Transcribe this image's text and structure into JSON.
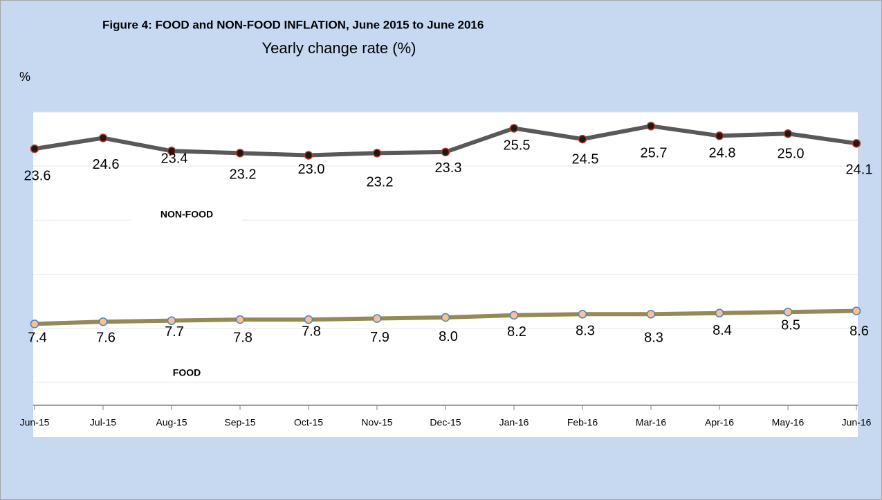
{
  "chart_data": {
    "type": "line",
    "title": "Figure 4: FOOD and NON-FOOD INFLATION, June 2015 to  June 2016",
    "subtitle": "Yearly change rate (%)",
    "y_label": "%",
    "categories": [
      "Jun-15",
      "Jul-15",
      "Aug-15",
      "Sep-15",
      "Oct-15",
      "Nov-15",
      "Dec-15",
      "Jan-16",
      "Feb-16",
      "Mar-16",
      "Apr-16",
      "May-16",
      "Jun-16"
    ],
    "series": [
      {
        "name": "NON-FOOD",
        "color": "#595959",
        "marker_fill": "#1a1a1a",
        "marker_stroke": "#c0392b",
        "values": [
          23.6,
          24.6,
          23.4,
          23.2,
          23.0,
          23.2,
          23.3,
          25.5,
          24.5,
          25.7,
          24.8,
          25.0,
          24.1
        ],
        "value_labels": [
          "23.6",
          "24.6",
          "23.4",
          "23.2",
          "23.0",
          "23.2",
          "23.3",
          "25.5",
          "24.5",
          "25.7",
          "24.8",
          "25.0",
          "24.1"
        ]
      },
      {
        "name": "FOOD",
        "color": "#948a54",
        "marker_fill": "#fac090",
        "marker_stroke": "#4f81bd",
        "values": [
          7.4,
          7.6,
          7.7,
          7.8,
          7.8,
          7.9,
          8.0,
          8.2,
          8.3,
          8.3,
          8.4,
          8.5,
          8.6
        ],
        "value_labels": [
          "7.4",
          "7.6",
          "7.7",
          "7.8",
          "7.8",
          "7.9",
          "8.0",
          "8.2",
          "8.3",
          "8.3",
          "8.4",
          "8.5",
          "8.6"
        ]
      }
    ],
    "ylim": [
      0,
      27
    ],
    "yticks": [
      2,
      7,
      12,
      17,
      22,
      27
    ],
    "grid": true
  }
}
